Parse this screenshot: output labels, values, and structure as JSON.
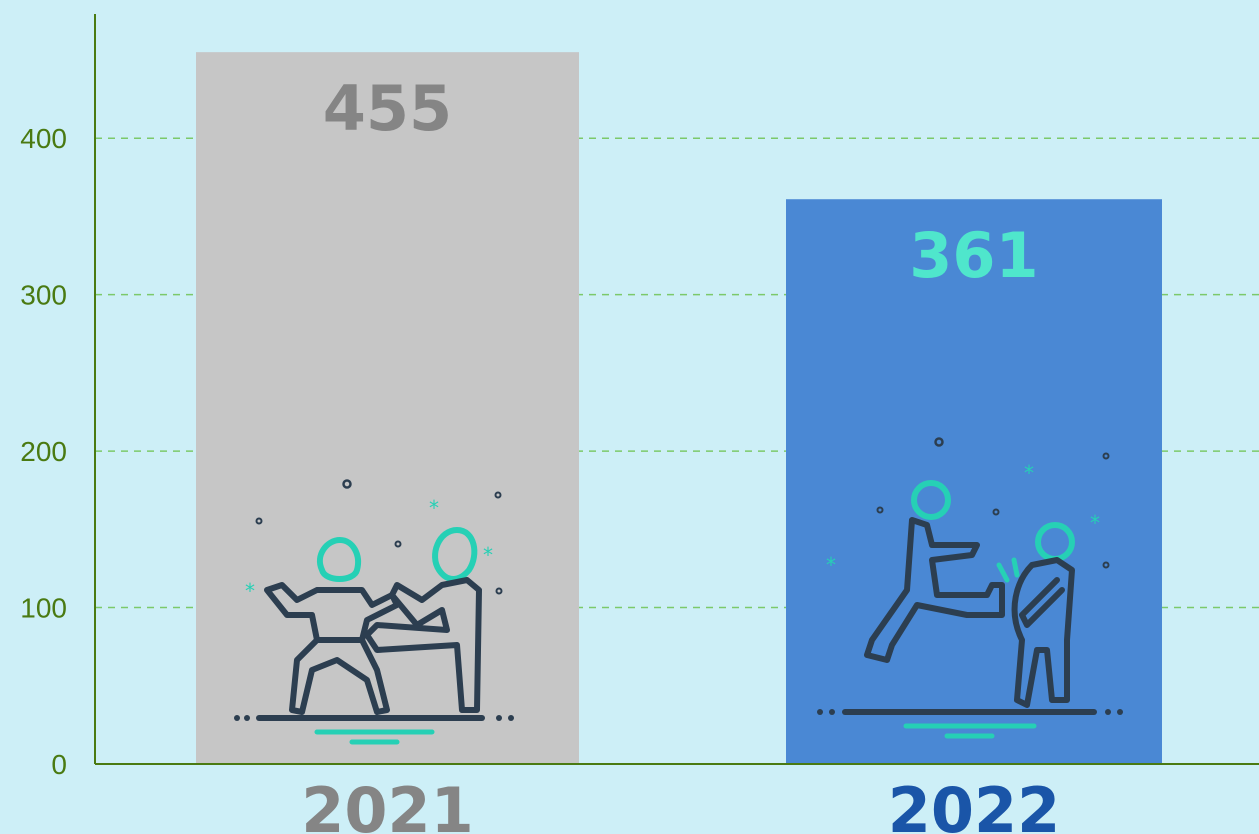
{
  "chart_data": {
    "type": "bar",
    "categories": [
      "2021",
      "2022"
    ],
    "values": [
      455,
      361
    ],
    "value_labels": [
      "455",
      "361"
    ],
    "y_ticks": [
      0,
      100,
      200,
      300,
      400
    ],
    "y_tick_labels": [
      "0",
      "100",
      "200",
      "300",
      "400"
    ],
    "ylim": [
      0,
      400
    ],
    "grid": true,
    "title": "",
    "xlabel": "",
    "ylabel": ""
  },
  "colors": {
    "background": "#cdeff7",
    "axis": "#4a7a12",
    "grid": "#7cc96a",
    "bar_2021": "#c6c6c6",
    "bar_2022": "#4a88d4",
    "label_2021": "#858585",
    "label_2022": "#1a55a8",
    "value_label_2021": "#858585",
    "value_label_2022": "#4fe6cc",
    "icon_dark": "#2c3e50",
    "icon_accent": "#26d0b5"
  },
  "icons": [
    "martial-arts-sparring-icon",
    "kicking-person-icon"
  ]
}
